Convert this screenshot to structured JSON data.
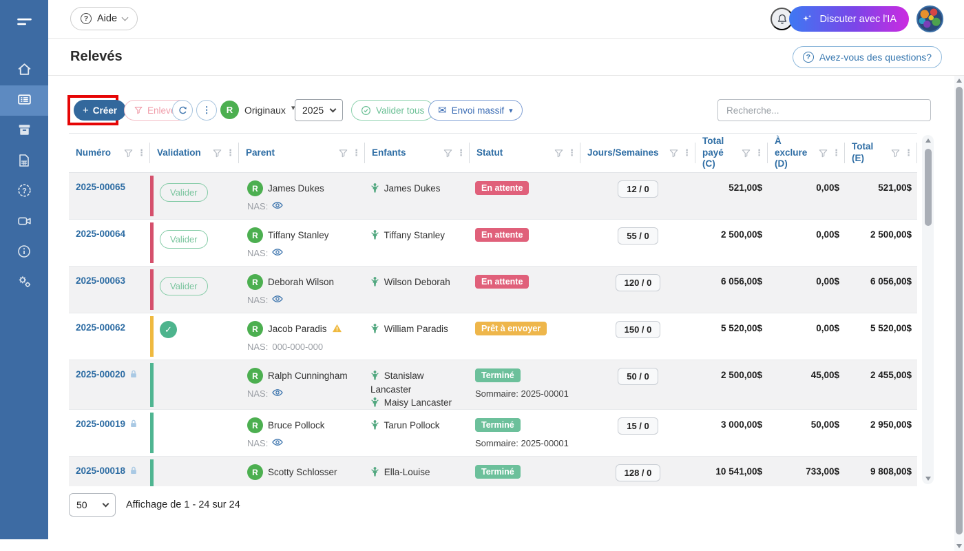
{
  "colors": {
    "sidebar_bg": "#3d6ba3",
    "sidebar_active_bg": "#5d8ac1",
    "accent_blue": "#2e6da4",
    "create_button_bg": "#33689c",
    "annotation_red": "#e60505",
    "status_red": "#e0607a",
    "status_amber": "#eeb64b",
    "status_green": "#6cc09b",
    "avatar_green": "#4caf50",
    "ai_gradient_start": "#3e78f2",
    "ai_gradient_end": "#cb2be0"
  },
  "sidebar": {
    "items": [
      {
        "name": "home",
        "icon": "home-icon",
        "active": false
      },
      {
        "name": "statements",
        "icon": "statements-list-icon",
        "active": true
      },
      {
        "name": "archive",
        "icon": "archive-icon",
        "active": false
      },
      {
        "name": "documents",
        "icon": "spreadsheet-icon",
        "active": false
      },
      {
        "name": "help",
        "icon": "help-badge-icon",
        "active": false
      },
      {
        "name": "videos",
        "icon": "video-camera-icon",
        "active": false
      },
      {
        "name": "info",
        "icon": "info-icon",
        "active": false
      },
      {
        "name": "settings",
        "icon": "gears-icon",
        "active": false
      }
    ]
  },
  "topbar": {
    "help_label": "Aide",
    "chat_ai_label": "Discuter avec l'IA"
  },
  "page_header": {
    "title": "Relevés",
    "questions_label": "Avez-vous des questions?"
  },
  "toolbar": {
    "create_label": "Créer",
    "remove_label": "Enlever",
    "view_avatar_letter": "R",
    "view_label": "Originaux",
    "year_value": "2025",
    "validate_all_label": "Valider tous",
    "mass_send_label": "Envoi massif",
    "search_placeholder": "Recherche..."
  },
  "table": {
    "columns": [
      {
        "label": "Numéro"
      },
      {
        "label": "Validation"
      },
      {
        "label": "Parent"
      },
      {
        "label": "Enfants"
      },
      {
        "label": "Statut"
      },
      {
        "label": "Jours/Semaines"
      },
      {
        "label": "Total payé (C)"
      },
      {
        "label": "À exclure (D)"
      },
      {
        "label": "Total (E)"
      }
    ],
    "validate_label": "Valider",
    "nas_label": "NAS:",
    "rows": [
      {
        "number": "2025-00065",
        "locked": false,
        "bar": "red",
        "validation": "button",
        "parent": "James Dukes",
        "warning": false,
        "nas": "masked",
        "children": [
          "James Dukes"
        ],
        "status": "En attente",
        "status_type": "red",
        "summary": null,
        "days": "12 / 0",
        "paid": "521,00$",
        "exclude": "0,00$",
        "total": "521,00$"
      },
      {
        "number": "2025-00064",
        "locked": false,
        "bar": "red",
        "validation": "button",
        "parent": "Tiffany Stanley",
        "warning": false,
        "nas": "masked",
        "children": [
          "Tiffany Stanley"
        ],
        "status": "En attente",
        "status_type": "red",
        "summary": null,
        "days": "55 / 0",
        "paid": "2 500,00$",
        "exclude": "0,00$",
        "total": "2 500,00$"
      },
      {
        "number": "2025-00063",
        "locked": false,
        "bar": "red",
        "validation": "button",
        "parent": "Deborah Wilson",
        "warning": false,
        "nas": "masked",
        "children": [
          "Wilson Deborah"
        ],
        "status": "En attente",
        "status_type": "red",
        "summary": null,
        "days": "120 / 0",
        "paid": "6 056,00$",
        "exclude": "0,00$",
        "total": "6 056,00$"
      },
      {
        "number": "2025-00062",
        "locked": false,
        "bar": "amber",
        "validation": "check",
        "parent": "Jacob Paradis",
        "warning": true,
        "nas": "000-000-000",
        "children": [
          "William Paradis"
        ],
        "status": "Prêt à envoyer",
        "status_type": "amber",
        "summary": null,
        "days": "150 / 0",
        "paid": "5 520,00$",
        "exclude": "0,00$",
        "total": "5 520,00$"
      },
      {
        "number": "2025-00020",
        "locked": true,
        "bar": "green",
        "validation": "none",
        "parent": "Ralph Cunningham",
        "warning": false,
        "nas": "masked",
        "children": [
          "Stanislaw Lancaster",
          "Maisy Lancaster"
        ],
        "status": "Terminé",
        "status_type": "green",
        "summary": "Sommaire: 2025-00001",
        "days": "50 / 0",
        "paid": "2 500,00$",
        "exclude": "45,00$",
        "total": "2 455,00$"
      },
      {
        "number": "2025-00019",
        "locked": true,
        "bar": "green",
        "validation": "none",
        "parent": "Bruce Pollock",
        "warning": false,
        "nas": "masked",
        "children": [
          "Tarun Pollock"
        ],
        "status": "Terminé",
        "status_type": "green",
        "summary": "Sommaire: 2025-00001",
        "days": "15 / 0",
        "paid": "3 000,00$",
        "exclude": "50,00$",
        "total": "2 950,00$"
      },
      {
        "number": "2025-00018",
        "locked": true,
        "bar": "green",
        "validation": "none",
        "parent": "Scotty Schlosser",
        "warning": false,
        "nas": null,
        "children": [
          "Ella-Louise"
        ],
        "status": "Terminé",
        "status_type": "green",
        "summary": null,
        "days": "128 / 0",
        "paid": "10 541,00$",
        "exclude": "733,00$",
        "total": "9 808,00$"
      }
    ]
  },
  "pagination": {
    "page_size": "50",
    "range_text": "Affichage de 1 - 24 sur 24"
  }
}
